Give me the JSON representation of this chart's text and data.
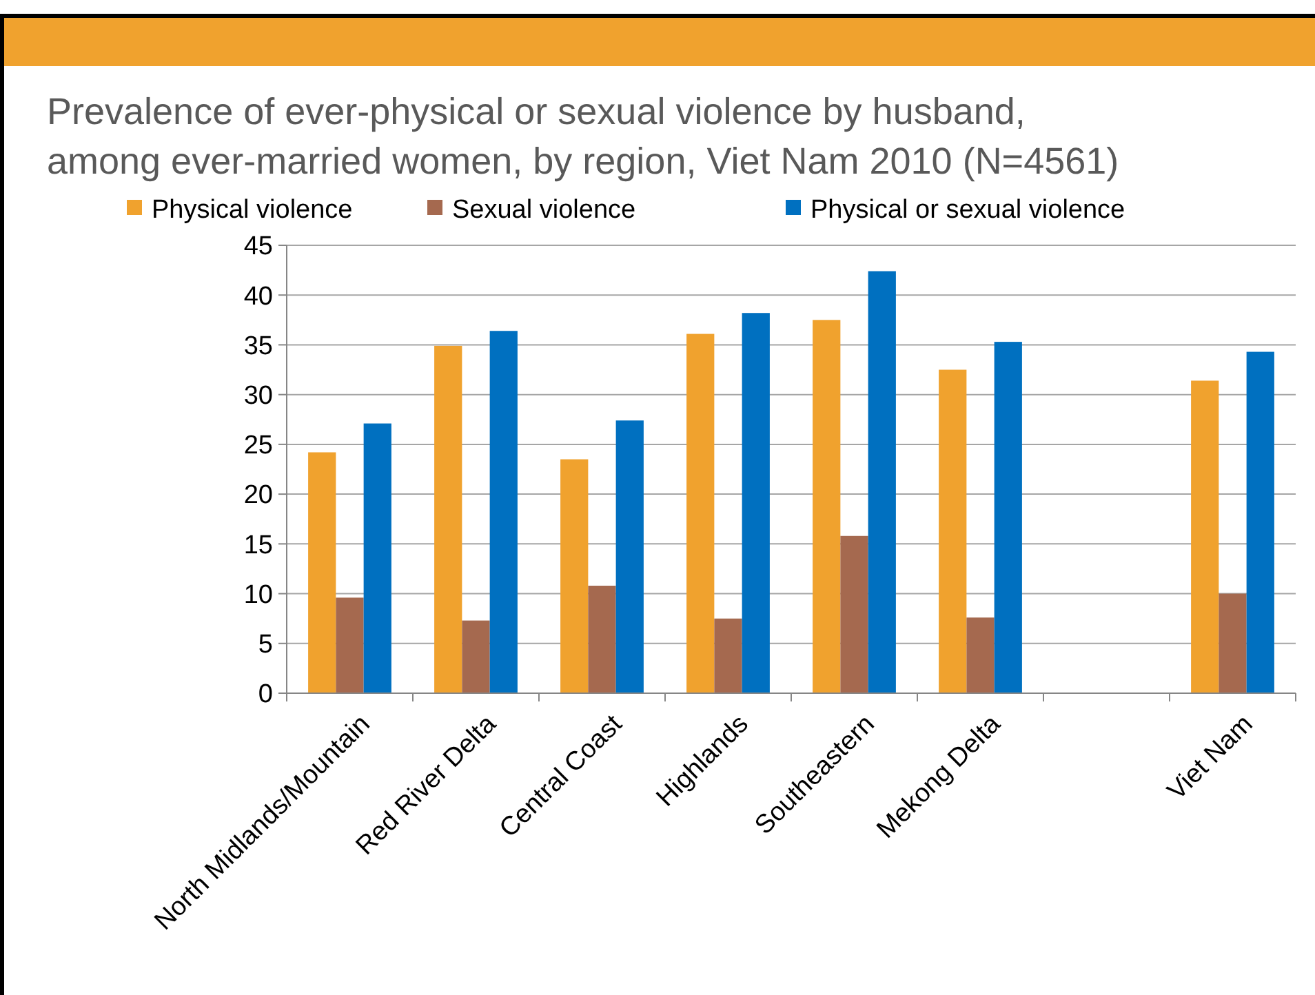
{
  "chart_data": {
    "type": "bar",
    "title": "Prevalence of ever-physical or sexual violence by husband, among ever-married women, by region, Viet Nam 2010 (N=4561)",
    "categories": [
      "North Midlands/Mountain",
      "Red River Delta",
      "Central Coast",
      "Highlands",
      "Southeastern",
      "Mekong Delta",
      null,
      "Viet Nam"
    ],
    "series": [
      {
        "name": "Physical violence",
        "color": "#f0a22e",
        "values": [
          24.2,
          34.9,
          23.5,
          36.1,
          37.5,
          32.5,
          null,
          31.4
        ]
      },
      {
        "name": "Sexual violence",
        "color": "#a5694f",
        "values": [
          9.6,
          7.3,
          10.8,
          7.5,
          15.8,
          7.6,
          null,
          10.0
        ]
      },
      {
        "name": "Physical or sexual violence",
        "color": "#0070c0",
        "values": [
          27.1,
          36.4,
          27.4,
          38.2,
          42.4,
          35.3,
          null,
          34.3
        ]
      }
    ],
    "ylim": [
      0,
      45
    ],
    "yticks": [
      0,
      5,
      10,
      15,
      20,
      25,
      30,
      35,
      40,
      45
    ],
    "grid": "y",
    "legend": "top"
  }
}
